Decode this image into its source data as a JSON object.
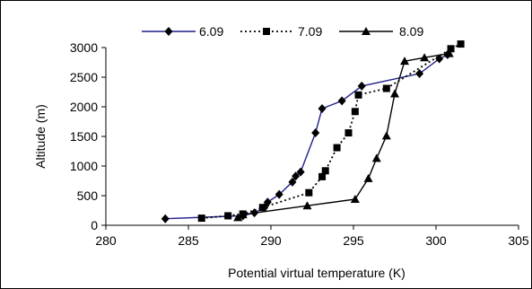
{
  "chart_data": {
    "type": "line",
    "title": "",
    "xlabel": "Potential virtual temperature (K)",
    "ylabel": "Altitude (m)",
    "xlim": [
      280,
      305
    ],
    "ylim": [
      0,
      3000
    ],
    "x_ticks": [
      "280",
      "285",
      "290",
      "295",
      "300",
      "305"
    ],
    "y_ticks": [
      "0",
      "500",
      "1000",
      "1500",
      "2000",
      "2500",
      "3000"
    ],
    "grid": false,
    "legend_position": "top",
    "series": [
      {
        "name": "6.09",
        "color": "#1f1f8c",
        "dash": "solid",
        "marker": "diamond",
        "points": [
          [
            283.6,
            110
          ],
          [
            288.3,
            160
          ],
          [
            289.0,
            210
          ],
          [
            289.6,
            300
          ],
          [
            289.8,
            390
          ],
          [
            290.5,
            520
          ],
          [
            291.3,
            730
          ],
          [
            291.5,
            830
          ],
          [
            291.8,
            900
          ],
          [
            292.7,
            1560
          ],
          [
            293.1,
            1970
          ],
          [
            294.3,
            2100
          ],
          [
            295.5,
            2350
          ],
          [
            299.0,
            2560
          ],
          [
            300.2,
            2810
          ],
          [
            300.7,
            2880
          ]
        ]
      },
      {
        "name": "7.09",
        "color": "#000000",
        "dash": "dotted",
        "marker": "square",
        "points": [
          [
            285.8,
            120
          ],
          [
            287.4,
            160
          ],
          [
            288.3,
            190
          ],
          [
            289.5,
            300
          ],
          [
            292.3,
            550
          ],
          [
            293.1,
            820
          ],
          [
            293.3,
            920
          ],
          [
            294.0,
            1310
          ],
          [
            294.7,
            1560
          ],
          [
            295.1,
            1920
          ],
          [
            295.3,
            2200
          ],
          [
            297.0,
            2310
          ],
          [
            300.9,
            2980
          ],
          [
            301.5,
            3060
          ]
        ]
      },
      {
        "name": "8.09",
        "color": "#000000",
        "dash": "solid",
        "marker": "triangle",
        "points": [
          [
            288.0,
            130
          ],
          [
            288.3,
            180
          ],
          [
            292.2,
            330
          ],
          [
            295.1,
            440
          ],
          [
            295.9,
            790
          ],
          [
            296.4,
            1130
          ],
          [
            297.0,
            1510
          ],
          [
            297.5,
            2220
          ],
          [
            298.1,
            2770
          ],
          [
            299.3,
            2830
          ],
          [
            300.8,
            2900
          ]
        ]
      }
    ]
  }
}
